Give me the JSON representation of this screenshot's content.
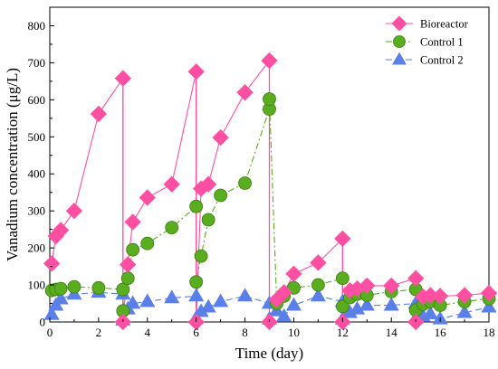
{
  "chart_data": {
    "type": "line",
    "title": "",
    "xlabel": "Time (day)",
    "ylabel": "Vanadium concentration (μg/L)",
    "xlim": [
      0,
      18
    ],
    "ylim": [
      0,
      850
    ],
    "xticks": [
      0,
      2,
      4,
      6,
      8,
      10,
      12,
      14,
      16,
      18
    ],
    "yticks": [
      0,
      100,
      200,
      300,
      400,
      500,
      600,
      700,
      800
    ],
    "grid": false,
    "legend": "top-right",
    "series": [
      {
        "name": "Bioreactor",
        "color": "#ff4fa3",
        "marker": "diamond",
        "dash": "solid",
        "x": [
          0.08,
          0.25,
          0.45,
          1.0,
          2.0,
          3.0,
          3.0,
          3.2,
          3.4,
          4.0,
          5.0,
          6.0,
          6.0,
          6.2,
          6.5,
          7.0,
          8.0,
          9.0,
          9.0,
          9.3,
          9.6,
          10.0,
          11.0,
          12.0,
          12.0,
          12.3,
          12.6,
          13.0,
          14.0,
          15.0,
          15.0,
          15.3,
          15.6,
          16.0,
          17.0,
          18.0
        ],
        "y": [
          158,
          232,
          248,
          300,
          562,
          658,
          0,
          155,
          270,
          336,
          372,
          676,
          0,
          360,
          372,
          498,
          620,
          706,
          0,
          60,
          80,
          130,
          160,
          225,
          0,
          85,
          90,
          98,
          98,
          118,
          0,
          68,
          72,
          70,
          72,
          78
        ]
      },
      {
        "name": "Control 1",
        "color": "#5aad1e",
        "marker": "circle",
        "dash": "dashdot",
        "x": [
          0.08,
          0.25,
          0.45,
          1.0,
          2.0,
          3.0,
          3.0,
          3.2,
          3.4,
          4.0,
          5.0,
          6.0,
          6.0,
          6.2,
          6.5,
          7.0,
          8.0,
          9.0,
          9.0,
          9.3,
          9.6,
          10.0,
          11.0,
          12.0,
          12.0,
          12.3,
          12.6,
          13.0,
          14.0,
          15.0,
          15.0,
          15.3,
          15.6,
          16.0,
          17.0,
          18.0
        ],
        "y": [
          85,
          88,
          90,
          95,
          92,
          88,
          30,
          118,
          195,
          212,
          255,
          312,
          108,
          178,
          276,
          342,
          375,
          575,
          602,
          50,
          70,
          92,
          100,
          118,
          42,
          66,
          75,
          72,
          82,
          88,
          32,
          48,
          55,
          45,
          55,
          63
        ]
      },
      {
        "name": "Control 2",
        "color": "#5b7fe8",
        "marker": "triangle",
        "dash": "dashed",
        "x": [
          0.08,
          0.25,
          0.45,
          1.0,
          2.0,
          3.0,
          3.0,
          3.2,
          3.4,
          4.0,
          5.0,
          6.0,
          6.0,
          6.2,
          6.5,
          7.0,
          8.0,
          9.0,
          9.0,
          9.3,
          9.6,
          10.0,
          11.0,
          12.0,
          12.0,
          12.3,
          12.6,
          13.0,
          14.0,
          15.0,
          15.0,
          15.3,
          15.6,
          16.0,
          17.0,
          18.0
        ],
        "y": [
          20,
          45,
          62,
          75,
          80,
          75,
          5,
          35,
          50,
          55,
          65,
          70,
          10,
          28,
          40,
          55,
          70,
          50,
          8,
          30,
          15,
          45,
          70,
          55,
          8,
          25,
          35,
          45,
          45,
          50,
          10,
          15,
          22,
          8,
          25,
          40
        ]
      }
    ],
    "drop_lines": [
      {
        "x": 3.0,
        "y": 658,
        "series": "Bioreactor"
      },
      {
        "x": 6.0,
        "y": 676,
        "series": "Bioreactor"
      },
      {
        "x": 9.0,
        "y": 706,
        "series": "Bioreactor"
      },
      {
        "x": 12.0,
        "y": 225,
        "series": "Bioreactor"
      }
    ]
  }
}
